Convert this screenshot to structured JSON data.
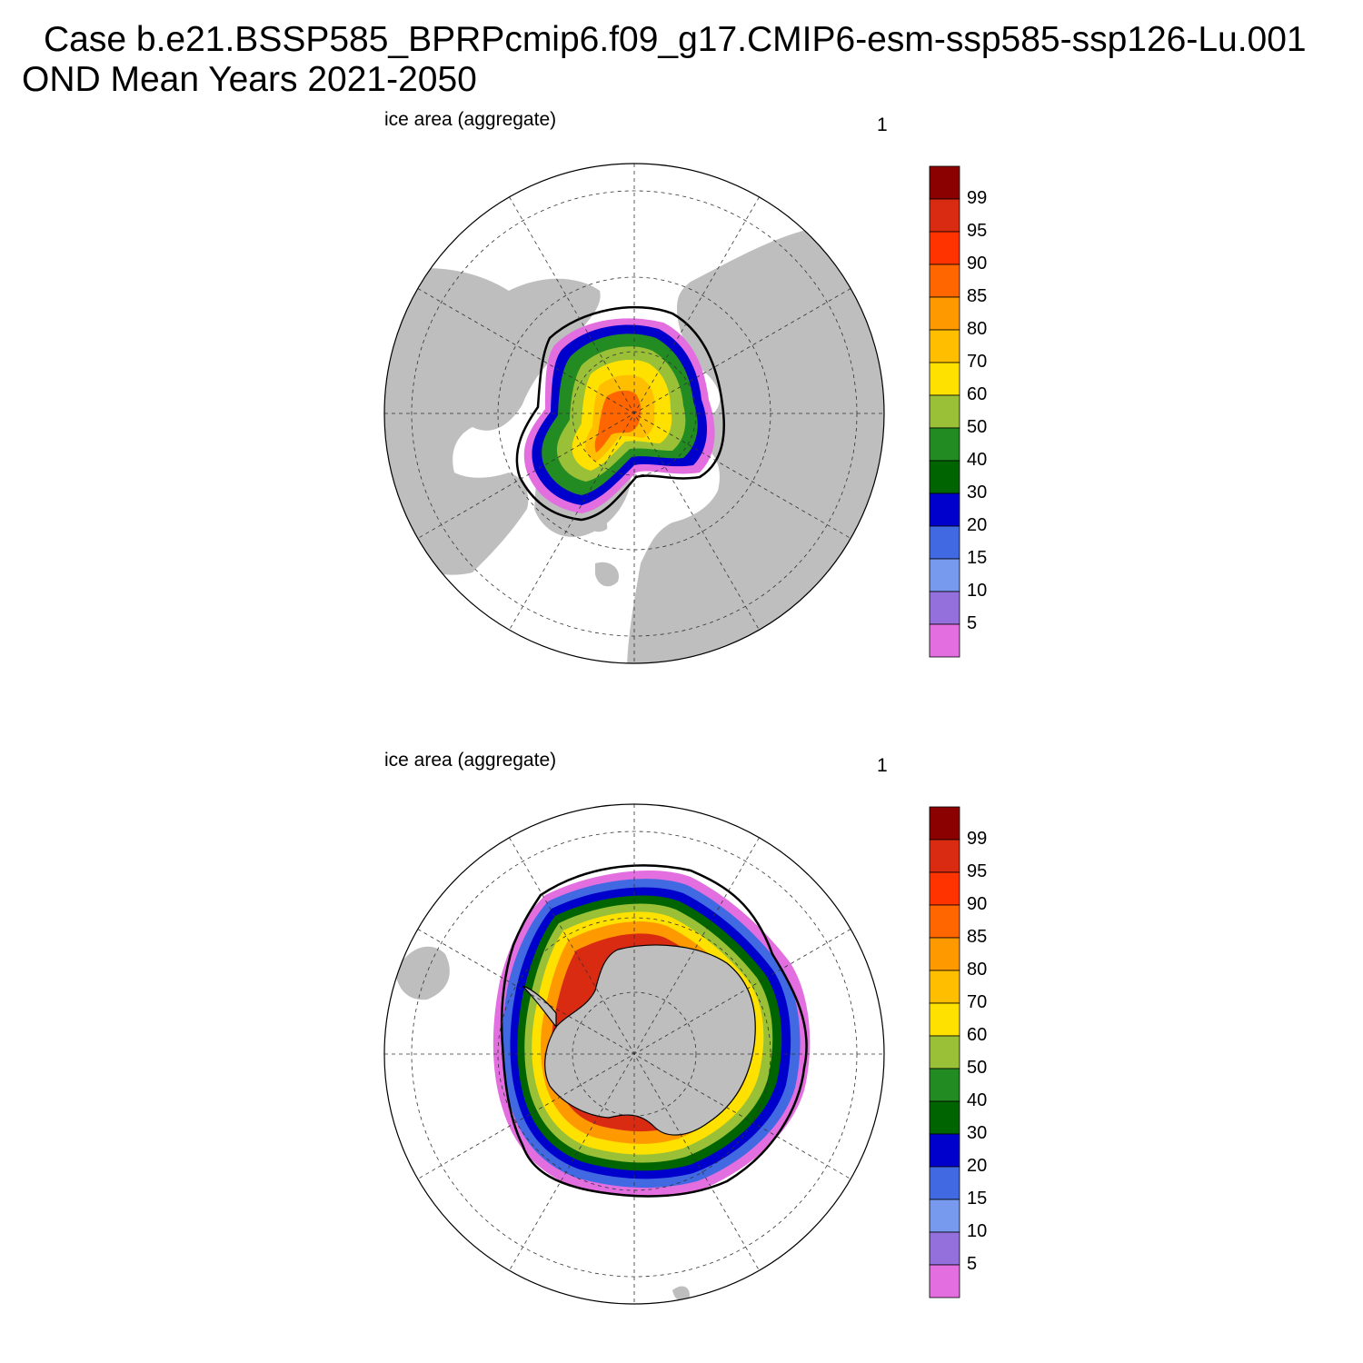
{
  "title": {
    "line1": "Case b.e21.BSSP585_BPRPcmip6.f09_g17.CMIP6-esm-ssp585-ssp126-Lu.001",
    "line2": "OND Mean   Years 2021-2050"
  },
  "panels": [
    {
      "id": "north",
      "hemisphere": "Northern Hemisphere (Arctic)",
      "variable_label": "ice area  (aggregate)",
      "units_label": "1"
    },
    {
      "id": "south",
      "hemisphere": "Southern Hemisphere (Antarctic)",
      "variable_label": "ice area  (aggregate)",
      "units_label": "1"
    }
  ],
  "colorbar": {
    "levels": [
      "99",
      "95",
      "90",
      "85",
      "80",
      "70",
      "60",
      "50",
      "40",
      "30",
      "20",
      "15",
      "10",
      "5"
    ],
    "colors": [
      "#8b0000",
      "#d92a12",
      "#ff3300",
      "#ff6600",
      "#ff9900",
      "#ffbf00",
      "#ffe100",
      "#99c036",
      "#228b22",
      "#006400",
      "#0000cd",
      "#4169e1",
      "#7799ee",
      "#9370db",
      "#e36ee0"
    ]
  },
  "style": {
    "land": "#bebebe",
    "ocean": "#ffffff",
    "line": "#000000"
  }
}
